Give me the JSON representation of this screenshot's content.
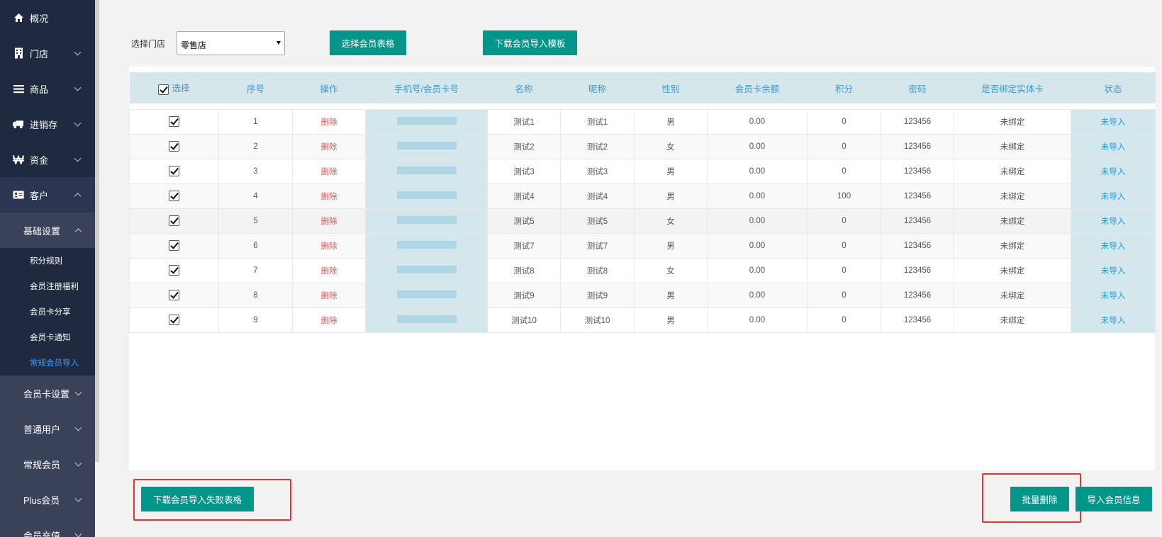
{
  "sidebar": {
    "top_items": [
      {
        "label": "概况",
        "icon": "home-icon"
      },
      {
        "label": "门店",
        "icon": "building-icon"
      },
      {
        "label": "商品",
        "icon": "list-icon"
      },
      {
        "label": "进销存",
        "icon": "truck-icon"
      },
      {
        "label": "资金",
        "icon": "won-icon"
      },
      {
        "label": "客户",
        "icon": "id-card-icon"
      }
    ],
    "sub_basic": "基础设置",
    "leaves": [
      "积分规则",
      "会员注册福利",
      "会员卡分享",
      "会员卡通知",
      "常规会员导入"
    ],
    "active_leaf": "常规会员导入",
    "sub_items": [
      "会员卡设置",
      "普通用户",
      "常规会员",
      "Plus会员",
      "会员充值"
    ]
  },
  "toolbar": {
    "store_label": "选择门店",
    "store_value": "零售店",
    "select_table_btn": "选择会员表格",
    "download_template_btn": "下载会员导入模板"
  },
  "table": {
    "columns": [
      "选择",
      "序号",
      "操作",
      "手机号/会员卡号",
      "名称",
      "昵称",
      "性别",
      "会员卡余额",
      "积分",
      "密码",
      "是否绑定实体卡",
      "状态"
    ],
    "rows": [
      {
        "no": "1",
        "op": "删除",
        "name": "测试1",
        "nick": "测试1",
        "sex": "男",
        "balance": "0.00",
        "points": "0",
        "pwd": "123456",
        "bound": "未绑定",
        "status": "未导入"
      },
      {
        "no": "2",
        "op": "删除",
        "name": "测试2",
        "nick": "测试2",
        "sex": "女",
        "balance": "0.00",
        "points": "0",
        "pwd": "123456",
        "bound": "未绑定",
        "status": "未导入"
      },
      {
        "no": "3",
        "op": "删除",
        "name": "测试3",
        "nick": "测试3",
        "sex": "男",
        "balance": "0.00",
        "points": "0",
        "pwd": "123456",
        "bound": "未绑定",
        "status": "未导入"
      },
      {
        "no": "4",
        "op": "删除",
        "name": "测试4",
        "nick": "测试4",
        "sex": "男",
        "balance": "0.00",
        "points": "100",
        "pwd": "123456",
        "bound": "未绑定",
        "status": "未导入"
      },
      {
        "no": "5",
        "op": "删除",
        "name": "测试5",
        "nick": "测试5",
        "sex": "女",
        "balance": "0.00",
        "points": "0",
        "pwd": "123456",
        "bound": "未绑定",
        "status": "未导入"
      },
      {
        "no": "6",
        "op": "删除",
        "name": "测试7",
        "nick": "测试7",
        "sex": "男",
        "balance": "0.00",
        "points": "0",
        "pwd": "123456",
        "bound": "未绑定",
        "status": "未导入"
      },
      {
        "no": "7",
        "op": "删除",
        "name": "测试8",
        "nick": "测试8",
        "sex": "女",
        "balance": "0.00",
        "points": "0",
        "pwd": "123456",
        "bound": "未绑定",
        "status": "未导入"
      },
      {
        "no": "8",
        "op": "删除",
        "name": "测试9",
        "nick": "测试9",
        "sex": "男",
        "balance": "0.00",
        "points": "0",
        "pwd": "123456",
        "bound": "未绑定",
        "status": "未导入"
      },
      {
        "no": "9",
        "op": "删除",
        "name": "测试10",
        "nick": "测试10",
        "sex": "男",
        "balance": "0.00",
        "points": "0",
        "pwd": "123456",
        "bound": "未绑定",
        "status": "未导入"
      }
    ]
  },
  "footer": {
    "download_failed_btn": "下载会员导入失败表格",
    "batch_delete_btn": "批量删除",
    "import_btn": "导入会员信息"
  },
  "colors": {
    "accent": "#00968a",
    "sidebar_bg": "#1f2940",
    "link_blue": "#1a9ad8",
    "delete_red": "#f0524f",
    "highlight_box": "#e8342e"
  }
}
